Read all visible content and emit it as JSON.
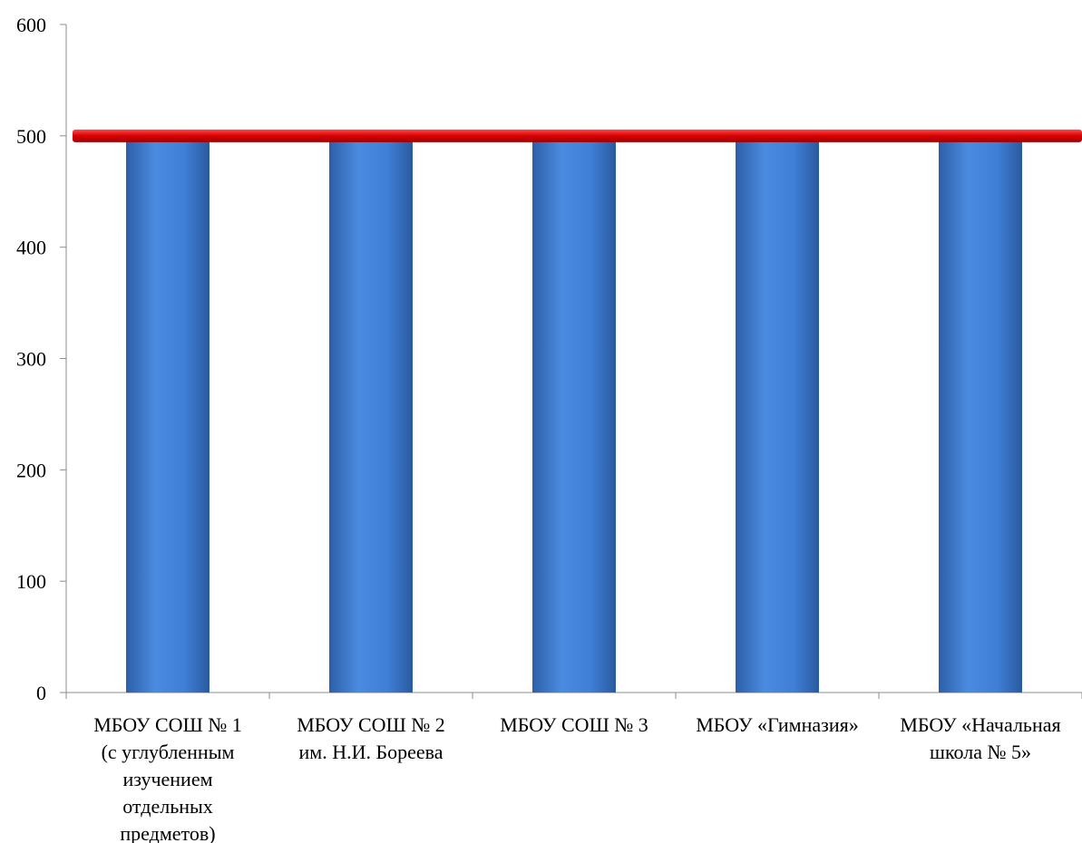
{
  "chart_data": {
    "type": "bar",
    "title": "",
    "xlabel": "",
    "ylabel": "",
    "ylim": [
      0,
      600
    ],
    "yticks": [
      0,
      100,
      200,
      300,
      400,
      500,
      600
    ],
    "categories": [
      [
        "МБОУ СОШ № 1",
        "(с углубленным",
        "изучением",
        "отдельных",
        "предметов)"
      ],
      [
        "МБОУ СОШ № 2",
        "им. Н.И. Бореева"
      ],
      [
        "МБОУ СОШ № 3"
      ],
      [
        "МБОУ «Гимназия»"
      ],
      [
        "МБОУ «Начальная",
        "школа № 5»"
      ]
    ],
    "values": [
      500,
      500,
      500,
      500,
      500
    ],
    "reference_line": {
      "value": 500,
      "color": "#e00000"
    },
    "bar_color": "#3f7fd6",
    "grid": false,
    "legend": "none"
  }
}
